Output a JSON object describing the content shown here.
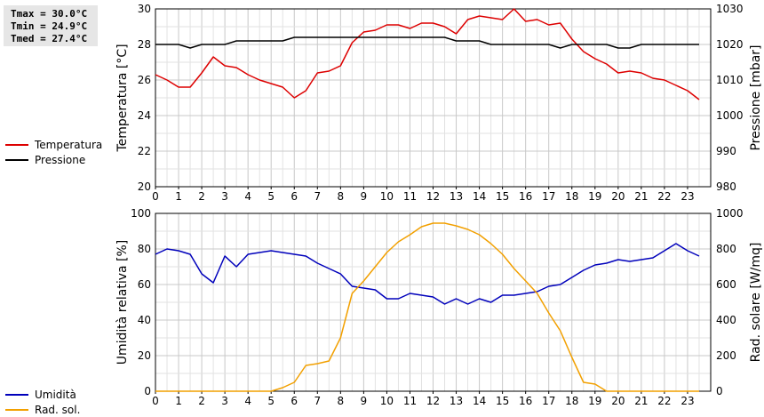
{
  "stats": {
    "tmax": "Tmax = 30.0°C",
    "tmin": "Tmin = 24.9°C",
    "tmed": "Tmed = 27.4°C"
  },
  "legend": {
    "top": [
      {
        "label": "Temperatura",
        "color": "#dd0000"
      },
      {
        "label": "Pressione",
        "color": "#000000"
      }
    ],
    "bottom": [
      {
        "label": "Umidità",
        "color": "#0000bb"
      },
      {
        "label": "Rad. sol.",
        "color": "#f2a000"
      }
    ]
  },
  "chart_data": [
    {
      "type": "line",
      "xlabel": "",
      "ylabel": "Temperatura [°C]",
      "y2label": "Pressione [mbar]",
      "xlim": [
        0,
        24
      ],
      "ylim": [
        20,
        30
      ],
      "y2lim": [
        980,
        1030
      ],
      "xticks": [
        "0",
        "1",
        "2",
        "3",
        "4",
        "5",
        "6",
        "7",
        "8",
        "9",
        "10",
        "11",
        "12",
        "13",
        "14",
        "15",
        "16",
        "17",
        "18",
        "19",
        "20",
        "21",
        "22",
        "23"
      ],
      "yticks": [
        "20",
        "22",
        "24",
        "26",
        "28",
        "30"
      ],
      "y2ticks": [
        "980",
        "990",
        "1000",
        "1010",
        "1020",
        "1030"
      ],
      "grid": true,
      "legend": "left",
      "series": [
        {
          "name": "Temperatura",
          "axis": "left",
          "color": "#dd0000",
          "x": [
            0,
            0.5,
            1,
            1.5,
            2,
            2.5,
            3,
            3.5,
            4,
            4.5,
            5,
            5.5,
            6,
            6.5,
            7,
            7.5,
            8,
            8.5,
            9,
            9.5,
            10,
            10.5,
            11,
            11.5,
            12,
            12.5,
            13,
            13.5,
            14,
            14.5,
            15,
            15.5,
            16,
            16.5,
            17,
            17.5,
            18,
            18.5,
            19,
            19.5,
            20,
            20.5,
            21,
            21.5,
            22,
            22.5,
            23,
            23.5
          ],
          "y": [
            26.3,
            26.0,
            25.6,
            25.6,
            26.4,
            27.3,
            26.8,
            26.7,
            26.3,
            26.0,
            25.8,
            25.6,
            25.0,
            25.4,
            26.4,
            26.5,
            26.8,
            28.1,
            28.7,
            28.8,
            29.1,
            29.1,
            28.9,
            29.2,
            29.2,
            29.0,
            28.6,
            29.4,
            29.6,
            29.5,
            29.4,
            30.0,
            29.3,
            29.4,
            29.1,
            29.2,
            28.3,
            27.6,
            27.2,
            26.9,
            26.4,
            26.5,
            26.4,
            26.1,
            26.0,
            25.7,
            25.4,
            24.9
          ]
        },
        {
          "name": "Pressione",
          "axis": "right",
          "color": "#000000",
          "x": [
            0,
            0.5,
            1,
            1.5,
            2,
            2.5,
            3,
            3.5,
            4,
            4.5,
            5,
            5.5,
            6,
            6.5,
            7,
            7.5,
            8,
            8.5,
            9,
            9.5,
            10,
            10.5,
            11,
            11.5,
            12,
            12.5,
            13,
            13.5,
            14,
            14.5,
            15,
            15.5,
            16,
            16.5,
            17,
            17.5,
            18,
            18.5,
            19,
            19.5,
            20,
            20.5,
            21,
            21.5,
            22,
            22.5,
            23,
            23.5
          ],
          "y": [
            1020,
            1020,
            1020,
            1019,
            1020,
            1020,
            1020,
            1021,
            1021,
            1021,
            1021,
            1021,
            1022,
            1022,
            1022,
            1022,
            1022,
            1022,
            1022,
            1022,
            1022,
            1022,
            1022,
            1022,
            1022,
            1022,
            1021,
            1021,
            1021,
            1020,
            1020,
            1020,
            1020,
            1020,
            1020,
            1019,
            1020,
            1020,
            1020,
            1020,
            1019,
            1019,
            1020,
            1020,
            1020,
            1020,
            1020,
            1020
          ]
        }
      ]
    },
    {
      "type": "line",
      "xlabel": "",
      "ylabel": "Umidità relativa [%]",
      "y2label": "Rad. solare [W/mq]",
      "xlim": [
        0,
        24
      ],
      "ylim": [
        0,
        100
      ],
      "y2lim": [
        0,
        1000
      ],
      "xticks": [
        "0",
        "1",
        "2",
        "3",
        "4",
        "5",
        "6",
        "7",
        "8",
        "9",
        "10",
        "11",
        "12",
        "13",
        "14",
        "15",
        "16",
        "17",
        "18",
        "19",
        "20",
        "21",
        "22",
        "23"
      ],
      "yticks": [
        "0",
        "20",
        "40",
        "60",
        "80",
        "100"
      ],
      "y2ticks": [
        "0",
        "200",
        "400",
        "600",
        "800",
        "1000"
      ],
      "grid": true,
      "legend": "left",
      "series": [
        {
          "name": "Umidità",
          "axis": "left",
          "color": "#0000bb",
          "x": [
            0,
            0.5,
            1,
            1.5,
            2,
            2.5,
            3,
            3.5,
            4,
            4.5,
            5,
            5.5,
            6,
            6.5,
            7,
            7.5,
            8,
            8.5,
            9,
            9.5,
            10,
            10.5,
            11,
            11.5,
            12,
            12.5,
            13,
            13.5,
            14,
            14.5,
            15,
            15.5,
            16,
            16.5,
            17,
            17.5,
            18,
            18.5,
            19,
            19.5,
            20,
            20.5,
            21,
            21.5,
            22,
            22.5,
            23,
            23.5
          ],
          "y": [
            77,
            80,
            79,
            77,
            66,
            61,
            76,
            70,
            77,
            78,
            79,
            78,
            77,
            76,
            72,
            69,
            66,
            59,
            58,
            57,
            52,
            52,
            55,
            54,
            53,
            49,
            52,
            49,
            52,
            50,
            54,
            54,
            55,
            56,
            59,
            60,
            64,
            68,
            71,
            72,
            74,
            73,
            74,
            75,
            79,
            83,
            79,
            76
          ]
        },
        {
          "name": "Rad. sol.",
          "axis": "right",
          "color": "#f2a000",
          "x": [
            0,
            0.5,
            1,
            1.5,
            2,
            2.5,
            3,
            3.5,
            4,
            4.5,
            5,
            5.5,
            6,
            6.5,
            7,
            7.5,
            8,
            8.5,
            9,
            9.5,
            10,
            10.5,
            11,
            11.5,
            12,
            12.5,
            13,
            13.5,
            14,
            14.5,
            15,
            15.5,
            16,
            16.5,
            17,
            17.5,
            18,
            18.5,
            19,
            19.5,
            20,
            20.5,
            21,
            21.5,
            22,
            22.5,
            23,
            23.5
          ],
          "y": [
            0,
            0,
            0,
            0,
            0,
            0,
            0,
            0,
            0,
            0,
            0,
            20,
            50,
            145,
            155,
            170,
            300,
            550,
            620,
            700,
            780,
            840,
            880,
            925,
            945,
            945,
            930,
            910,
            880,
            830,
            770,
            690,
            620,
            550,
            440,
            340,
            190,
            50,
            40,
            0,
            0,
            0,
            0,
            0,
            0,
            0,
            0,
            0
          ]
        }
      ]
    }
  ]
}
